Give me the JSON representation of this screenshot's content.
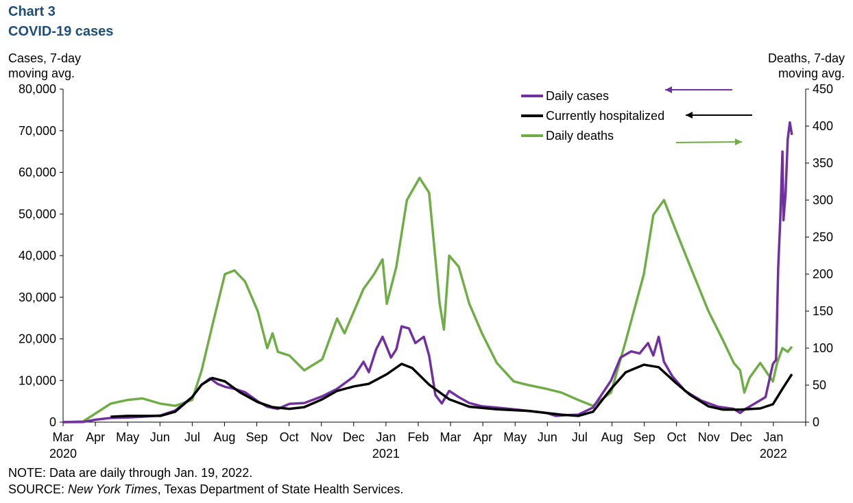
{
  "header": {
    "chart_number": "Chart 3",
    "title": "COVID-19 cases"
  },
  "note": "NOTE: Data are daily through Jan. 19, 2022.",
  "source": {
    "prefix": "SOURCE: ",
    "italic": "New York Times",
    "rest": ", Texas Department of State Health Services."
  },
  "chart_data": {
    "type": "line",
    "title": "COVID-19 cases",
    "y_left": {
      "label_line1": "Cases, 7-day",
      "label_line2": "moving avg.",
      "range": [
        0,
        80000
      ],
      "ticks": [
        "0",
        "10,000",
        "20,000",
        "30,000",
        "40,000",
        "50,000",
        "60,000",
        "70,000",
        "80,000"
      ]
    },
    "y_right": {
      "label_line1": "Deaths, 7-day",
      "label_line2": "moving avg.",
      "range": [
        0,
        450
      ],
      "ticks": [
        "0",
        "50",
        "100",
        "150",
        "200",
        "250",
        "300",
        "350",
        "400",
        "450"
      ]
    },
    "x_axis": {
      "months": [
        "Mar",
        "Apr",
        "May",
        "Jun",
        "Jul",
        "Aug",
        "Sep",
        "Oct",
        "Nov",
        "Dec",
        "Jan",
        "Feb",
        "Mar",
        "Apr",
        "May",
        "Jun",
        "Jul",
        "Aug",
        "Sep",
        "Oct",
        "Nov",
        "Dec",
        "Jan"
      ],
      "years": [
        {
          "label": "2020",
          "month_index": 0
        },
        {
          "label": "2021",
          "month_index": 10
        },
        {
          "label": "2022",
          "month_index": 22
        }
      ],
      "start": "2020-03-01",
      "end": "2022-01-19"
    },
    "grid": false,
    "legend_position": "top-right",
    "colors": {
      "cases": "#7030a0",
      "hospitalized": "#000000",
      "deaths": "#70ad47"
    },
    "series": [
      {
        "name": "Daily cases",
        "axis": "left",
        "points": [
          [
            "2020-03-01",
            0
          ],
          [
            "2020-03-20",
            50
          ],
          [
            "2020-04-01",
            600
          ],
          [
            "2020-04-15",
            1000
          ],
          [
            "2020-05-01",
            1100
          ],
          [
            "2020-05-15",
            1300
          ],
          [
            "2020-06-01",
            1600
          ],
          [
            "2020-06-15",
            2800
          ],
          [
            "2020-07-01",
            6000
          ],
          [
            "2020-07-10",
            9000
          ],
          [
            "2020-07-18",
            10500
          ],
          [
            "2020-07-25",
            9200
          ],
          [
            "2020-08-01",
            8500
          ],
          [
            "2020-08-10",
            8000
          ],
          [
            "2020-08-20",
            7200
          ],
          [
            "2020-09-01",
            5000
          ],
          [
            "2020-09-10",
            3700
          ],
          [
            "2020-09-20",
            3200
          ],
          [
            "2020-10-01",
            4400
          ],
          [
            "2020-10-15",
            4600
          ],
          [
            "2020-11-01",
            6200
          ],
          [
            "2020-11-15",
            8000
          ],
          [
            "2020-12-01",
            11000
          ],
          [
            "2020-12-10",
            14500
          ],
          [
            "2020-12-15",
            12000
          ],
          [
            "2020-12-22",
            17500
          ],
          [
            "2020-12-28",
            20500
          ],
          [
            "2021-01-05",
            15500
          ],
          [
            "2021-01-10",
            17500
          ],
          [
            "2021-01-15",
            23000
          ],
          [
            "2021-01-22",
            22500
          ],
          [
            "2021-01-28",
            19000
          ],
          [
            "2021-02-05",
            20500
          ],
          [
            "2021-02-10",
            16000
          ],
          [
            "2021-02-16",
            6500
          ],
          [
            "2021-02-22",
            4500
          ],
          [
            "2021-03-01",
            7500
          ],
          [
            "2021-03-10",
            6000
          ],
          [
            "2021-03-20",
            4600
          ],
          [
            "2021-04-01",
            3800
          ],
          [
            "2021-04-15",
            3500
          ],
          [
            "2021-05-01",
            3100
          ],
          [
            "2021-05-15",
            2700
          ],
          [
            "2021-06-01",
            2200
          ],
          [
            "2021-06-10",
            1500
          ],
          [
            "2021-06-20",
            1700
          ],
          [
            "2021-07-01",
            1800
          ],
          [
            "2021-07-15",
            3500
          ],
          [
            "2021-08-01",
            10000
          ],
          [
            "2021-08-10",
            15500
          ],
          [
            "2021-08-20",
            17000
          ],
          [
            "2021-08-28",
            16500
          ],
          [
            "2021-09-05",
            19000
          ],
          [
            "2021-09-10",
            16000
          ],
          [
            "2021-09-15",
            20500
          ],
          [
            "2021-09-20",
            14500
          ],
          [
            "2021-09-28",
            11000
          ],
          [
            "2021-10-10",
            7500
          ],
          [
            "2021-10-25",
            5200
          ],
          [
            "2021-11-10",
            3700
          ],
          [
            "2021-11-25",
            3200
          ],
          [
            "2021-12-01",
            2200
          ],
          [
            "2021-12-05",
            3000
          ],
          [
            "2021-12-15",
            4500
          ],
          [
            "2021-12-25",
            6000
          ],
          [
            "2022-01-01",
            14000
          ],
          [
            "2022-01-04",
            15000
          ],
          [
            "2022-01-06",
            37000
          ],
          [
            "2022-01-08",
            49000
          ],
          [
            "2022-01-10",
            65000
          ],
          [
            "2022-01-11",
            48500
          ],
          [
            "2022-01-13",
            55000
          ],
          [
            "2022-01-15",
            68000
          ],
          [
            "2022-01-17",
            72000
          ],
          [
            "2022-01-19",
            69000
          ]
        ]
      },
      {
        "name": "Currently hospitalized",
        "axis": "left",
        "points": [
          [
            "2020-04-15",
            1300
          ],
          [
            "2020-05-01",
            1500
          ],
          [
            "2020-05-15",
            1500
          ],
          [
            "2020-06-01",
            1500
          ],
          [
            "2020-06-15",
            2500
          ],
          [
            "2020-07-01",
            6000
          ],
          [
            "2020-07-10",
            9000
          ],
          [
            "2020-07-20",
            10600
          ],
          [
            "2020-08-01",
            9800
          ],
          [
            "2020-08-15",
            7200
          ],
          [
            "2020-09-01",
            4800
          ],
          [
            "2020-09-15",
            3600
          ],
          [
            "2020-10-01",
            3200
          ],
          [
            "2020-10-15",
            3600
          ],
          [
            "2020-11-01",
            5500
          ],
          [
            "2020-11-15",
            7500
          ],
          [
            "2020-12-01",
            8600
          ],
          [
            "2020-12-15",
            9200
          ],
          [
            "2021-01-01",
            11500
          ],
          [
            "2021-01-15",
            14000
          ],
          [
            "2021-01-25",
            13000
          ],
          [
            "2021-02-10",
            9000
          ],
          [
            "2021-03-01",
            5500
          ],
          [
            "2021-03-20",
            3700
          ],
          [
            "2021-04-15",
            3100
          ],
          [
            "2021-05-15",
            2700
          ],
          [
            "2021-06-15",
            1800
          ],
          [
            "2021-07-01",
            1500
          ],
          [
            "2021-07-15",
            2500
          ],
          [
            "2021-08-01",
            8000
          ],
          [
            "2021-08-15",
            12000
          ],
          [
            "2021-09-01",
            13800
          ],
          [
            "2021-09-15",
            13200
          ],
          [
            "2021-10-01",
            9500
          ],
          [
            "2021-10-15",
            6500
          ],
          [
            "2021-11-01",
            3800
          ],
          [
            "2021-11-15",
            3000
          ],
          [
            "2021-12-01",
            3000
          ],
          [
            "2021-12-20",
            3300
          ],
          [
            "2022-01-01",
            4300
          ],
          [
            "2022-01-10",
            8000
          ],
          [
            "2022-01-19",
            11500
          ]
        ]
      },
      {
        "name": "Daily deaths",
        "axis": "right",
        "points": [
          [
            "2020-03-01",
            0
          ],
          [
            "2020-03-20",
            1
          ],
          [
            "2020-04-01",
            12
          ],
          [
            "2020-04-15",
            25
          ],
          [
            "2020-05-01",
            30
          ],
          [
            "2020-05-15",
            32
          ],
          [
            "2020-06-01",
            25
          ],
          [
            "2020-06-15",
            22
          ],
          [
            "2020-07-01",
            30
          ],
          [
            "2020-07-10",
            70
          ],
          [
            "2020-07-20",
            130
          ],
          [
            "2020-08-01",
            200
          ],
          [
            "2020-08-10",
            205
          ],
          [
            "2020-08-20",
            190
          ],
          [
            "2020-09-01",
            150
          ],
          [
            "2020-09-10",
            100
          ],
          [
            "2020-09-15",
            120
          ],
          [
            "2020-09-20",
            95
          ],
          [
            "2020-10-01",
            90
          ],
          [
            "2020-10-15",
            70
          ],
          [
            "2020-11-01",
            85
          ],
          [
            "2020-11-15",
            140
          ],
          [
            "2020-11-22",
            120
          ],
          [
            "2020-12-01",
            150
          ],
          [
            "2020-12-10",
            180
          ],
          [
            "2020-12-20",
            200
          ],
          [
            "2020-12-28",
            220
          ],
          [
            "2021-01-01",
            160
          ],
          [
            "2021-01-10",
            210
          ],
          [
            "2021-01-20",
            300
          ],
          [
            "2021-02-01",
            330
          ],
          [
            "2021-02-10",
            310
          ],
          [
            "2021-02-20",
            160
          ],
          [
            "2021-02-24",
            125
          ],
          [
            "2021-03-01",
            225
          ],
          [
            "2021-03-10",
            210
          ],
          [
            "2021-03-20",
            160
          ],
          [
            "2021-04-01",
            120
          ],
          [
            "2021-04-15",
            80
          ],
          [
            "2021-05-01",
            55
          ],
          [
            "2021-05-15",
            50
          ],
          [
            "2021-06-01",
            45
          ],
          [
            "2021-06-15",
            40
          ],
          [
            "2021-07-01",
            30
          ],
          [
            "2021-07-15",
            22
          ],
          [
            "2021-08-01",
            40
          ],
          [
            "2021-08-15",
            110
          ],
          [
            "2021-09-01",
            200
          ],
          [
            "2021-09-10",
            280
          ],
          [
            "2021-09-20",
            300
          ],
          [
            "2021-10-01",
            260
          ],
          [
            "2021-10-15",
            210
          ],
          [
            "2021-11-01",
            150
          ],
          [
            "2021-11-15",
            110
          ],
          [
            "2021-11-25",
            80
          ],
          [
            "2021-12-01",
            70
          ],
          [
            "2021-12-05",
            40
          ],
          [
            "2021-12-10",
            60
          ],
          [
            "2021-12-20",
            80
          ],
          [
            "2022-01-01",
            55
          ],
          [
            "2022-01-05",
            80
          ],
          [
            "2022-01-10",
            100
          ],
          [
            "2022-01-15",
            95
          ],
          [
            "2022-01-19",
            102
          ]
        ]
      }
    ]
  }
}
